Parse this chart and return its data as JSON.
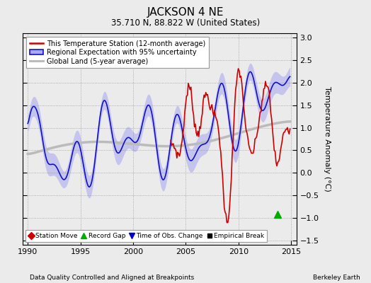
{
  "title": "JACKSON 4 NE",
  "subtitle": "35.710 N, 88.822 W (United States)",
  "xlabel_note": "Data Quality Controlled and Aligned at Breakpoints",
  "xlabel_note_right": "Berkeley Earth",
  "ylabel": "Temperature Anomaly (°C)",
  "xlim": [
    1989.5,
    2015.5
  ],
  "ylim": [
    -1.6,
    3.1
  ],
  "yticks": [
    -1.5,
    -1.0,
    -0.5,
    0.0,
    0.5,
    1.0,
    1.5,
    2.0,
    2.5,
    3.0
  ],
  "xticks": [
    1990,
    1995,
    2000,
    2005,
    2010,
    2015
  ],
  "bg_color": "#ebebeb",
  "plot_bg_color": "#ebebeb",
  "station_color": "#cc0000",
  "regional_color": "#1111cc",
  "band_color": "#aaaaee",
  "global_color": "#bbbbbb",
  "legend_items": [
    {
      "label": "This Temperature Station (12-month average)"
    },
    {
      "label": "Regional Expectation with 95% uncertainty"
    },
    {
      "label": "Global Land (5-year average)"
    }
  ],
  "marker_legend": [
    {
      "label": "Station Move",
      "color": "#cc0000",
      "marker": "D"
    },
    {
      "label": "Record Gap",
      "color": "#00aa00",
      "marker": "^"
    },
    {
      "label": "Time of Obs. Change",
      "color": "#0000cc",
      "marker": "v"
    },
    {
      "label": "Empirical Break",
      "color": "#000000",
      "marker": "s"
    }
  ],
  "record_gap_x": 2013.7,
  "record_gap_y": -0.92
}
